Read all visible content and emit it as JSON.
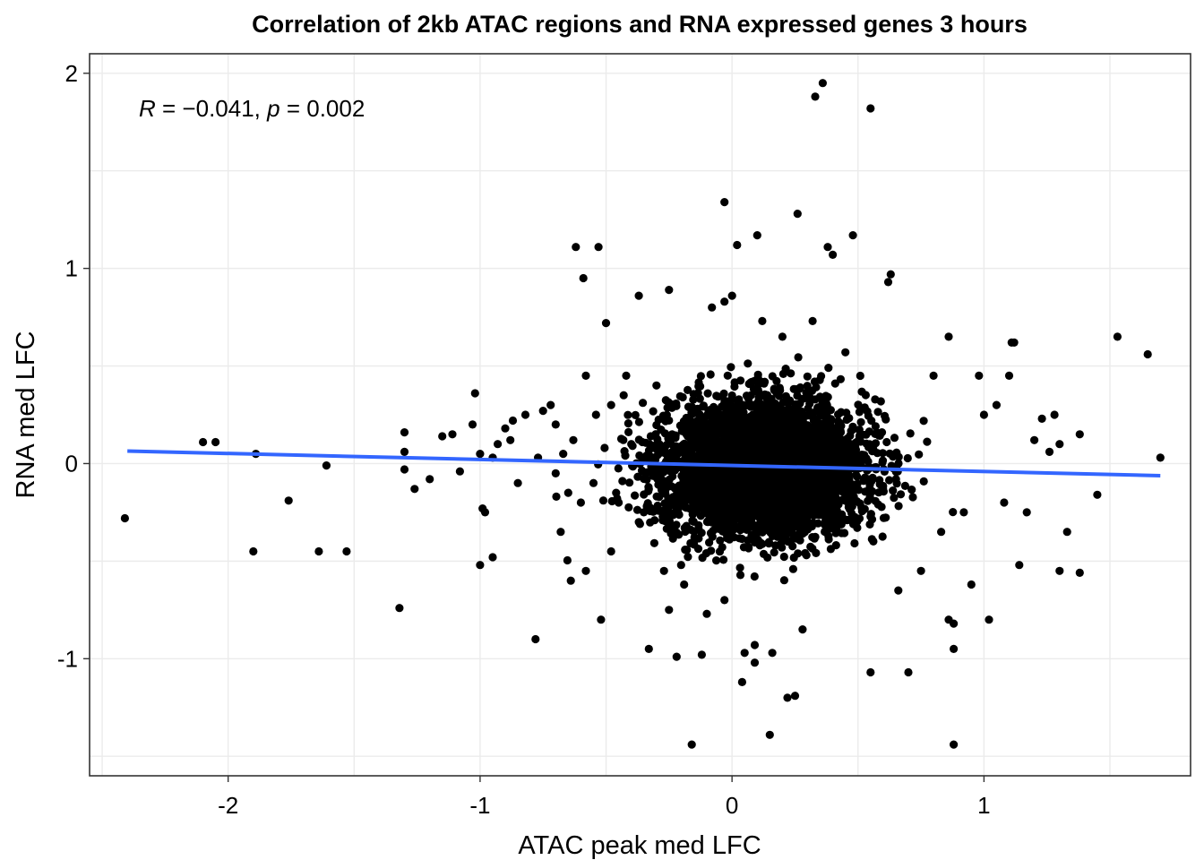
{
  "chart_data": {
    "type": "scatter",
    "title": "Correlation of 2kb ATAC regions and RNA expressed genes 3 hours",
    "xlabel": "ATAC peak med LFC",
    "ylabel": "RNA med LFC",
    "xlim": [
      -2.55,
      1.82
    ],
    "ylim": [
      -1.6,
      2.1
    ],
    "x_ticks": [
      -2,
      -1,
      0,
      1
    ],
    "x_tick_labels": [
      "-2",
      "-1",
      "0",
      "1"
    ],
    "y_ticks": [
      -1,
      0,
      1,
      2
    ],
    "y_tick_labels": [
      "-1",
      "0",
      "1",
      "2"
    ],
    "grid": true,
    "annotation": {
      "r_label": "R",
      "r_eq": " = ",
      "r_value": "−0.041",
      "sep": ", ",
      "p_label": "p",
      "p_eq": " = ",
      "p_value": "0.002"
    },
    "point_color": "#000000",
    "trend_line": {
      "color": "#3366ff",
      "x": [
        -2.4,
        1.7
      ],
      "y": [
        0.064,
        -0.062
      ]
    },
    "dense_cluster": {
      "n": 4200,
      "center_x": 0.13,
      "center_y": -0.02,
      "sd_x": 0.2,
      "sd_y": 0.17
    },
    "points": [
      [
        -2.41,
        -0.28
      ],
      [
        -2.1,
        0.11
      ],
      [
        -2.05,
        0.11
      ],
      [
        -1.9,
        -0.45
      ],
      [
        -1.89,
        0.05
      ],
      [
        -1.76,
        -0.19
      ],
      [
        -1.61,
        -0.01
      ],
      [
        -1.64,
        -0.45
      ],
      [
        -1.53,
        -0.45
      ],
      [
        -1.32,
        -0.74
      ],
      [
        -1.3,
        0.16
      ],
      [
        -1.3,
        0.06
      ],
      [
        -1.3,
        -0.03
      ],
      [
        -1.26,
        -0.13
      ],
      [
        -1.2,
        -0.08
      ],
      [
        -1.15,
        0.14
      ],
      [
        -1.11,
        0.15
      ],
      [
        -1.08,
        -0.04
      ],
      [
        -1.03,
        0.2
      ],
      [
        -1.02,
        0.36
      ],
      [
        -1.0,
        -0.52
      ],
      [
        -0.99,
        -0.23
      ],
      [
        -0.98,
        -0.25
      ],
      [
        -0.95,
        -0.48
      ],
      [
        -0.93,
        0.1
      ],
      [
        -0.9,
        0.18
      ],
      [
        -0.87,
        0.22
      ],
      [
        -0.82,
        0.25
      ],
      [
        -0.78,
        -0.9
      ],
      [
        -0.75,
        0.27
      ],
      [
        -0.72,
        0.3
      ],
      [
        -0.7,
        -0.05
      ],
      [
        -0.68,
        -0.35
      ],
      [
        -0.65,
        -0.15
      ],
      [
        -0.63,
        0.12
      ],
      [
        -0.62,
        1.11
      ],
      [
        -0.59,
        0.95
      ],
      [
        -0.58,
        0.45
      ],
      [
        -0.55,
        -0.1
      ],
      [
        -0.53,
        1.11
      ],
      [
        -0.52,
        -0.8
      ],
      [
        -0.5,
        0.72
      ],
      [
        -0.48,
        -0.45
      ],
      [
        -0.45,
        -0.2
      ],
      [
        -0.43,
        0.35
      ],
      [
        -0.4,
        0.1
      ],
      [
        -0.37,
        -0.3
      ],
      [
        -0.37,
        0.86
      ],
      [
        -0.33,
        -0.95
      ],
      [
        -0.3,
        0.4
      ],
      [
        -0.27,
        -0.55
      ],
      [
        -0.25,
        -0.75
      ],
      [
        -0.22,
        -0.99
      ],
      [
        -0.25,
        0.89
      ],
      [
        -0.19,
        -0.62
      ],
      [
        -0.16,
        -1.44
      ],
      [
        -0.12,
        -0.98
      ],
      [
        -0.1,
        -0.77
      ],
      [
        -0.08,
        0.8
      ],
      [
        -0.03,
        -0.7
      ],
      [
        -0.03,
        0.83
      ],
      [
        0.0,
        0.86
      ],
      [
        0.02,
        1.12
      ],
      [
        0.04,
        -1.12
      ],
      [
        0.05,
        -0.97
      ],
      [
        0.09,
        -0.93
      ],
      [
        0.09,
        -1.02
      ],
      [
        -0.03,
        1.34
      ],
      [
        0.1,
        1.17
      ],
      [
        0.12,
        0.73
      ],
      [
        0.15,
        -1.39
      ],
      [
        0.16,
        -0.97
      ],
      [
        0.2,
        0.65
      ],
      [
        0.22,
        -1.2
      ],
      [
        0.25,
        -1.19
      ],
      [
        0.26,
        1.28
      ],
      [
        0.28,
        -0.85
      ],
      [
        0.32,
        0.73
      ],
      [
        0.33,
        1.88
      ],
      [
        0.36,
        1.95
      ],
      [
        0.38,
        1.11
      ],
      [
        0.4,
        1.07
      ],
      [
        0.45,
        0.57
      ],
      [
        0.48,
        1.17
      ],
      [
        0.55,
        1.82
      ],
      [
        0.55,
        -1.07
      ],
      [
        0.62,
        0.93
      ],
      [
        0.63,
        0.97
      ],
      [
        0.66,
        -0.65
      ],
      [
        0.7,
        -1.07
      ],
      [
        0.75,
        -0.55
      ],
      [
        0.8,
        0.45
      ],
      [
        0.83,
        -0.35
      ],
      [
        0.86,
        -0.8
      ],
      [
        0.86,
        0.65
      ],
      [
        0.88,
        -0.95
      ],
      [
        0.88,
        -0.82
      ],
      [
        0.88,
        -1.44
      ],
      [
        0.92,
        -0.25
      ],
      [
        0.95,
        -0.62
      ],
      [
        0.98,
        0.45
      ],
      [
        1.0,
        0.25
      ],
      [
        1.02,
        -0.8
      ],
      [
        1.05,
        0.3
      ],
      [
        1.08,
        -0.2
      ],
      [
        1.1,
        0.45
      ],
      [
        1.11,
        0.62
      ],
      [
        1.12,
        0.62
      ],
      [
        1.14,
        -0.52
      ],
      [
        1.17,
        -0.25
      ],
      [
        1.2,
        0.12
      ],
      [
        1.23,
        0.23
      ],
      [
        1.26,
        0.06
      ],
      [
        1.28,
        0.25
      ],
      [
        1.3,
        -0.55
      ],
      [
        1.3,
        0.1
      ],
      [
        1.33,
        -0.35
      ],
      [
        1.38,
        0.15
      ],
      [
        1.38,
        -0.56
      ],
      [
        1.45,
        -0.16
      ],
      [
        1.53,
        0.65
      ],
      [
        1.65,
        0.56
      ],
      [
        1.7,
        0.03
      ],
      [
        -0.46,
        -0.15
      ],
      [
        -0.54,
        0.25
      ],
      [
        -0.6,
        -0.2
      ],
      [
        -0.67,
        0.05
      ],
      [
        -0.7,
        0.2
      ],
      [
        -0.77,
        0.03
      ],
      [
        -0.85,
        -0.1
      ],
      [
        -0.88,
        0.12
      ],
      [
        -0.95,
        0.03
      ],
      [
        -1.0,
        0.05
      ],
      [
        -0.58,
        -0.55
      ],
      [
        -0.64,
        -0.6
      ],
      [
        -0.35,
        -0.25
      ],
      [
        -0.42,
        0.45
      ],
      [
        -0.48,
        0.3
      ]
    ]
  }
}
